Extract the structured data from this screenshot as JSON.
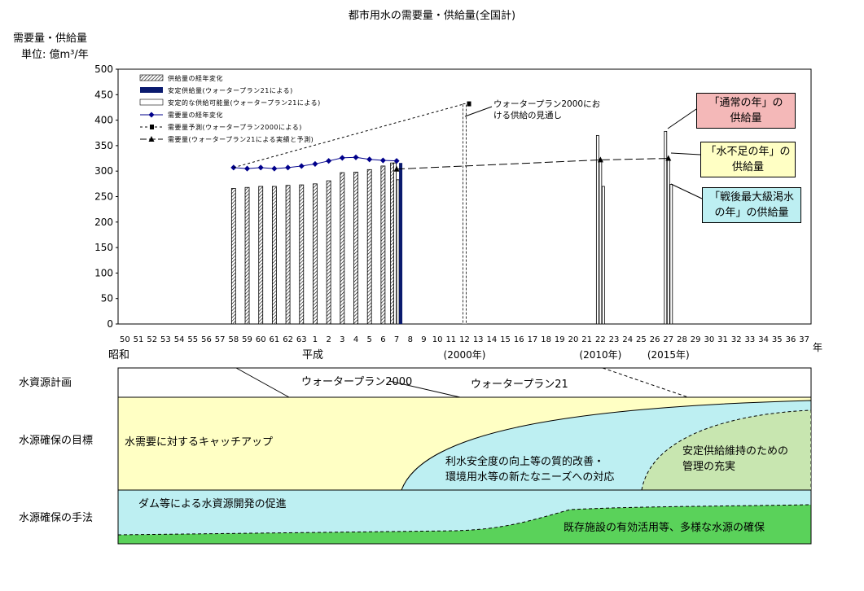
{
  "title": "都市用水の需要量・供給量(全国計)",
  "ylabel_line1": "需要量・供給量",
  "ylabel_line2": "単位: 億m³/年",
  "chart_data": {
    "type": "bar",
    "ylim": [
      0,
      500
    ],
    "yticks": [
      0,
      50,
      100,
      150,
      200,
      250,
      300,
      350,
      400,
      450,
      500
    ],
    "x_ticks": [
      "50",
      "51",
      "52",
      "53",
      "54",
      "55",
      "56",
      "57",
      "58",
      "59",
      "60",
      "61",
      "62",
      "63",
      "1",
      "2",
      "3",
      "4",
      "5",
      "6",
      "7",
      "8",
      "9",
      "10",
      "11",
      "12",
      "13",
      "14",
      "15",
      "16",
      "17",
      "18",
      "19",
      "20",
      "21",
      "22",
      "23",
      "24",
      "25",
      "26",
      "27",
      "28",
      "29",
      "30",
      "31",
      "32",
      "33",
      "34",
      "35",
      "36",
      "37"
    ],
    "x_unit": "年",
    "era_labels": [
      "昭和",
      "平成"
    ],
    "year_notes": [
      "(2000年)",
      "(2010年)",
      "(2015年)"
    ],
    "legend": [
      "供給量の経年変化",
      "安定供給量(ウォータープラン21による)",
      "安定的な供給可能量(ウォータープラン21による)",
      "需要量の経年変化",
      "需要量予測(ウォータープラン2000による)",
      "需要量(ウォータープラン21による実績と予測)"
    ],
    "series": [
      {
        "name": "供給量の経年変化",
        "x": [
          "58",
          "59",
          "60",
          "61",
          "62",
          "63",
          "1",
          "2",
          "3",
          "4",
          "5",
          "6",
          "7"
        ],
        "values": [
          266,
          268,
          270,
          270,
          272,
          273,
          275,
          281,
          297,
          298,
          303,
          310,
          316
        ]
      },
      {
        "name": "安定供給量(ウォータープラン21による)",
        "x": [
          "7"
        ],
        "values": [
          316
        ]
      },
      {
        "name": "安定的な供給可能量(ウォータープラン21による)",
        "x": [
          "7",
          "7",
          "7",
          "22",
          "22",
          "22",
          "27",
          "27",
          "27"
        ],
        "values": [
          316,
          283,
          251,
          370,
          322,
          270,
          378,
          324,
          274
        ]
      },
      {
        "name": "需要量の経年変化",
        "x": [
          "58",
          "59",
          "60",
          "61",
          "62",
          "63",
          "1",
          "2",
          "3",
          "4",
          "5",
          "6",
          "7"
        ],
        "values": [
          307,
          305,
          307,
          305,
          307,
          310,
          314,
          320,
          326,
          327,
          323,
          321,
          320
        ]
      },
      {
        "name": "需要量予測(ウォータープラン2000による)",
        "x": [
          "58",
          "12"
        ],
        "values": [
          307,
          432
        ]
      },
      {
        "name": "需要量(ウォータープラン21による実績と予測)",
        "x": [
          "7",
          "22",
          "27"
        ],
        "values": [
          304,
          322,
          325
        ]
      }
    ],
    "annotations": {
      "wp2000": [
        "ウォータープラン2000にお",
        "ける供給の見通し"
      ],
      "normal": [
        "「通常の年」の",
        "供給量"
      ],
      "drought": [
        "「水不足の年」の",
        "供給量"
      ],
      "worst": [
        "「戦後最大級渇水",
        "の年」の供給量"
      ]
    }
  },
  "lower_panel": {
    "row_labels": [
      "水資源計画",
      "水源確保の目標",
      "水源確保の手法"
    ],
    "plans": [
      "ウォータープラン2000",
      "ウォータープラン21"
    ],
    "goals": [
      "水需要に対するキャッチアップ",
      "利水安全度の向上等の質的改善・",
      "環境用水等の新たなニーズへの対応",
      "安定供給維持のための",
      "管理の充実"
    ],
    "methods": [
      "ダム等による水資源開発の促進",
      "既存施設の有効活用等、多様な水源の確保"
    ]
  },
  "colors": {
    "yellow": "#ffffc4",
    "cyan": "#bdeff2",
    "green": "#5ad25a",
    "navy": "#0a1a6e",
    "pink": "#f4b8b8"
  }
}
